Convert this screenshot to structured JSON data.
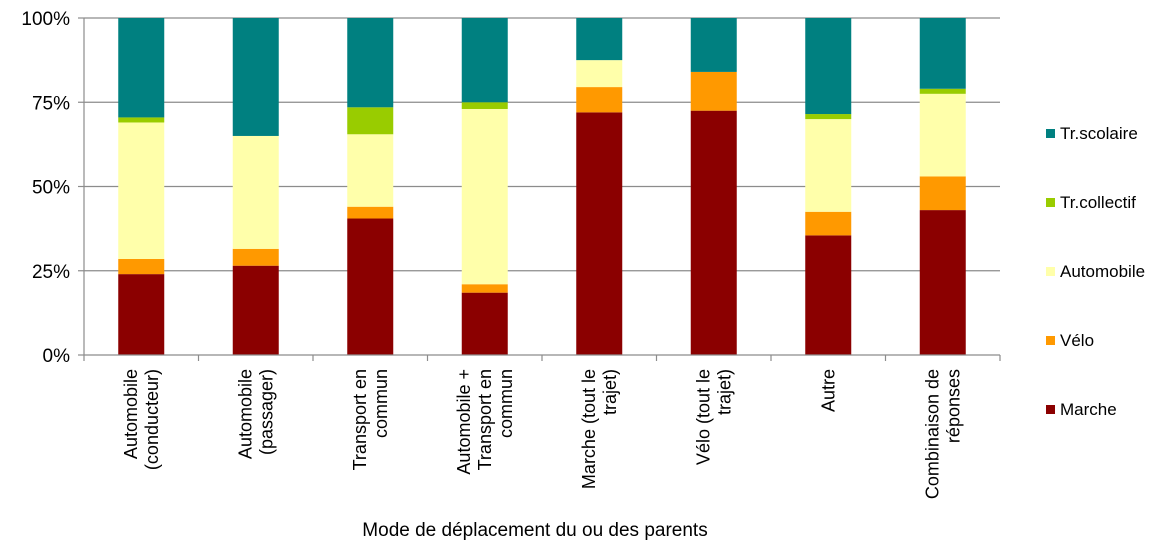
{
  "chart_data": {
    "type": "bar",
    "stacked": true,
    "percent": true,
    "title": "",
    "xlabel": "Mode de déplacement du ou des parents",
    "ylabel": "",
    "ylim": [
      0,
      100
    ],
    "y_ticks": [
      "0%",
      "25%",
      "50%",
      "75%",
      "100%"
    ],
    "grid": true,
    "legend_position": "right",
    "categories": [
      [
        "Automobile",
        "(conducteur)"
      ],
      [
        "Automobile",
        "(passager)"
      ],
      [
        "Transport en",
        "commun"
      ],
      [
        "Automobile +",
        "Transport en",
        "commun"
      ],
      [
        "Marche (tout le",
        "trajet)"
      ],
      [
        "Vélo (tout le",
        "trajet)"
      ],
      [
        "Autre"
      ],
      [
        "Combinaison de",
        "réponses"
      ]
    ],
    "series": [
      {
        "name": "Marche",
        "color": "#8b0000",
        "values": [
          24,
          26.5,
          40.5,
          18.5,
          72,
          72.5,
          35.5,
          43
        ]
      },
      {
        "name": "Vélo",
        "color": "#ff9900",
        "values": [
          4.5,
          5,
          3.5,
          2.5,
          7.5,
          11.5,
          7,
          10
        ]
      },
      {
        "name": "Automobile",
        "color": "#ffffaa",
        "values": [
          40.5,
          33.5,
          21.5,
          52,
          8,
          0,
          27.5,
          24.5
        ]
      },
      {
        "name": "Tr.collectif",
        "color": "#99cc00",
        "values": [
          1.5,
          0,
          8,
          2,
          0,
          0,
          1.5,
          1.5
        ]
      },
      {
        "name": "Tr.scolaire",
        "color": "#008080",
        "values": [
          29.5,
          35,
          26.5,
          25,
          12.5,
          16,
          28.5,
          21
        ]
      }
    ]
  }
}
